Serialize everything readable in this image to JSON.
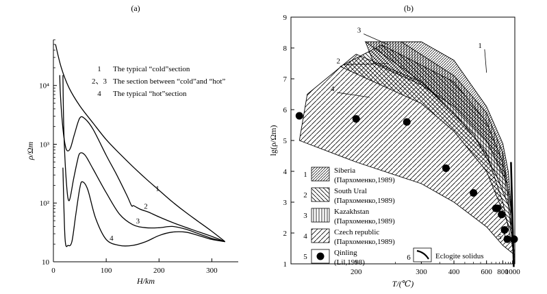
{
  "chart_data": [
    {
      "type": "line",
      "panel_label": "(a)",
      "xlabel": "H/km",
      "ylabel": "ρ/Ωm",
      "xlim": [
        0,
        350
      ],
      "ylim": [
        10,
        60000
      ],
      "yscale": "log",
      "x_ticks": [
        0,
        100,
        200,
        300
      ],
      "y_ticks": [
        {
          "value": 10,
          "label": "10"
        },
        {
          "value": 100,
          "label": "10²"
        },
        {
          "value": 1000,
          "label": "10³"
        },
        {
          "value": 10000,
          "label": "10⁴"
        }
      ],
      "legend": [
        {
          "id": "1",
          "text": "The typical “cold”section"
        },
        {
          "id": "2、3",
          "text": "The section between “cold”and “hot”"
        },
        {
          "id": "4",
          "text": "The typical “hot”section"
        }
      ],
      "series": [
        {
          "name": "1",
          "label_at": [
            197,
            160
          ],
          "x": [
            4,
            15,
            30,
            50,
            75,
            100,
            125,
            150,
            175,
            200,
            225,
            250,
            275,
            300,
            325
          ],
          "y": [
            50000,
            20000,
            9000,
            4500,
            2300,
            1200,
            700,
            420,
            260,
            165,
            105,
            70,
            48,
            33,
            22
          ]
        },
        {
          "name": "2",
          "label_at": [
            175,
            80
          ],
          "x": [
            12,
            13,
            16,
            20,
            25,
            32,
            40,
            50,
            60,
            75,
            100,
            120,
            140,
            148,
            152,
            165,
            180,
            200,
            230,
            260,
            300,
            325
          ],
          "y": [
            15000,
            8000,
            3000,
            1300,
            800,
            850,
            1500,
            2800,
            2700,
            1800,
            650,
            300,
            130,
            90,
            90,
            78,
            70,
            58,
            45,
            36,
            27,
            22
          ]
        },
        {
          "name": "3",
          "label_at": [
            160,
            45
          ],
          "x": [
            18,
            20,
            25,
            30,
            38,
            45,
            50,
            60,
            75,
            100,
            125,
            150,
            175,
            200,
            225,
            250,
            275,
            300,
            325
          ],
          "y": [
            15000,
            1500,
            200,
            110,
            250,
            500,
            700,
            650,
            380,
            150,
            65,
            43,
            38,
            38,
            40,
            36,
            30,
            25,
            22
          ]
        },
        {
          "name": "4",
          "label_at": [
            110,
            23
          ],
          "x": [
            18,
            22,
            28,
            35,
            42,
            50,
            55,
            65,
            80,
            100,
            125,
            150,
            175,
            200,
            225,
            250,
            275,
            300,
            325
          ],
          "y": [
            400,
            25,
            19,
            22,
            60,
            180,
            230,
            170,
            55,
            24,
            19,
            19,
            22,
            28,
            32,
            32,
            28,
            24,
            22
          ]
        }
      ]
    },
    {
      "type": "area",
      "panel_label": "(b)",
      "xlabel": "T/(℃)",
      "ylabel": "lg(ρ/Ωm)",
      "xscale": "inverse",
      "xlim": [
        150,
        1060
      ],
      "ylim": [
        1,
        9
      ],
      "x_ticks": [
        200,
        300,
        400,
        600,
        800,
        1000
      ],
      "y_ticks": [
        1,
        2,
        3,
        4,
        5,
        6,
        7,
        8,
        9
      ],
      "fields": [
        {
          "id": "1",
          "name": "Siberia",
          "source": "(Пархоменко,1989)",
          "hatch": "diagonal-right",
          "boundary": [
            [
              210,
              8.2
            ],
            [
              300,
              8.2
            ],
            [
              400,
              7.6
            ],
            [
              600,
              6.1
            ],
            [
              800,
              4.9
            ],
            [
              900,
              4.0
            ],
            [
              1020,
              2.0
            ],
            [
              1000,
              2.5
            ],
            [
              880,
              3.6
            ],
            [
              600,
              5.0
            ],
            [
              400,
              6.1
            ],
            [
              300,
              6.8
            ],
            [
              220,
              7.5
            ],
            [
              210,
              8.2
            ]
          ]
        },
        {
          "id": "2",
          "name": "South Ural",
          "source": "(Пархоменко,1989)",
          "hatch": "diagonal-left",
          "boundary": [
            [
              185,
              7.4
            ],
            [
              230,
              8.1
            ],
            [
              400,
              6.9
            ],
            [
              600,
              5.6
            ],
            [
              800,
              4.3
            ],
            [
              950,
              2.6
            ],
            [
              1040,
              1.4
            ],
            [
              950,
              2.1
            ],
            [
              800,
              2.7
            ],
            [
              600,
              4.0
            ],
            [
              400,
              5.3
            ],
            [
              300,
              6.2
            ],
            [
              185,
              7.4
            ]
          ]
        },
        {
          "id": "3",
          "name": "Kazakhstan",
          "source": "(Пархоменко,1989)",
          "hatch": "vertical",
          "boundary": [
            [
              210,
              8.2
            ],
            [
              260,
              8.2
            ],
            [
              400,
              7.1
            ],
            [
              600,
              5.9
            ],
            [
              800,
              4.6
            ],
            [
              1000,
              2.4
            ],
            [
              1040,
              1.2
            ],
            [
              900,
              2.9
            ],
            [
              700,
              3.9
            ],
            [
              500,
              5.2
            ],
            [
              300,
              6.9
            ],
            [
              210,
              8.2
            ]
          ]
        },
        {
          "id": "4",
          "name": "Czech republic",
          "source": "(Пархоменко,1989)",
          "hatch": "diagonal-right",
          "boundary": [
            [
              155,
              5.0
            ],
            [
              160,
              6.5
            ],
            [
              200,
              7.8
            ],
            [
              300,
              6.9
            ],
            [
              400,
              5.9
            ],
            [
              600,
              4.6
            ],
            [
              800,
              3.0
            ],
            [
              1040,
              1.3
            ],
            [
              800,
              1.6
            ],
            [
              600,
              2.2
            ],
            [
              400,
              3.0
            ],
            [
              300,
              3.6
            ],
            [
              200,
              4.3
            ],
            [
              155,
              5.0
            ]
          ]
        }
      ],
      "field_labels": [
        {
          "id": "1",
          "at": [
            560,
            8.0
          ]
        },
        {
          "id": "2",
          "at": [
            185,
            7.5
          ]
        },
        {
          "id": "3",
          "at": [
            205,
            8.5
          ]
        },
        {
          "id": "4",
          "at": [
            180,
            6.6
          ]
        },
        {
          "id": "5",
          "at": [
            780,
            1.8
          ]
        }
      ],
      "qinling_points": {
        "name": "Qinling",
        "source": "(Lil,1998)",
        "x": [
          155,
          200,
          270,
          370,
          500,
          700,
          720,
          780,
          830,
          880,
          1040
        ],
        "y": [
          5.8,
          5.7,
          5.6,
          4.1,
          3.3,
          2.8,
          2.8,
          2.6,
          2.1,
          1.8,
          1.8
        ]
      },
      "eclogite_solidus": {
        "id": "6",
        "name": "Eclogite solidus",
        "x": [
          960,
          1030
        ],
        "y": [
          4.3,
          0.9
        ]
      },
      "legend": [
        {
          "id": "1",
          "line1": "Siberia",
          "line2": "(Пархоменко,1989)"
        },
        {
          "id": "2",
          "line1": "South Ural",
          "line2": "(Пархоменко,1989)"
        },
        {
          "id": "3",
          "line1": "Kazakhstan",
          "line2": "(Пархоменко,1989)"
        },
        {
          "id": "4",
          "line1": "Czech republic",
          "line2": "(Пархоменко,1989)"
        },
        {
          "id": "5",
          "line1": "Qinling",
          "line2": "(Lil,1998)"
        },
        {
          "id": "6",
          "line1": "Eclogite solidus"
        }
      ]
    }
  ]
}
